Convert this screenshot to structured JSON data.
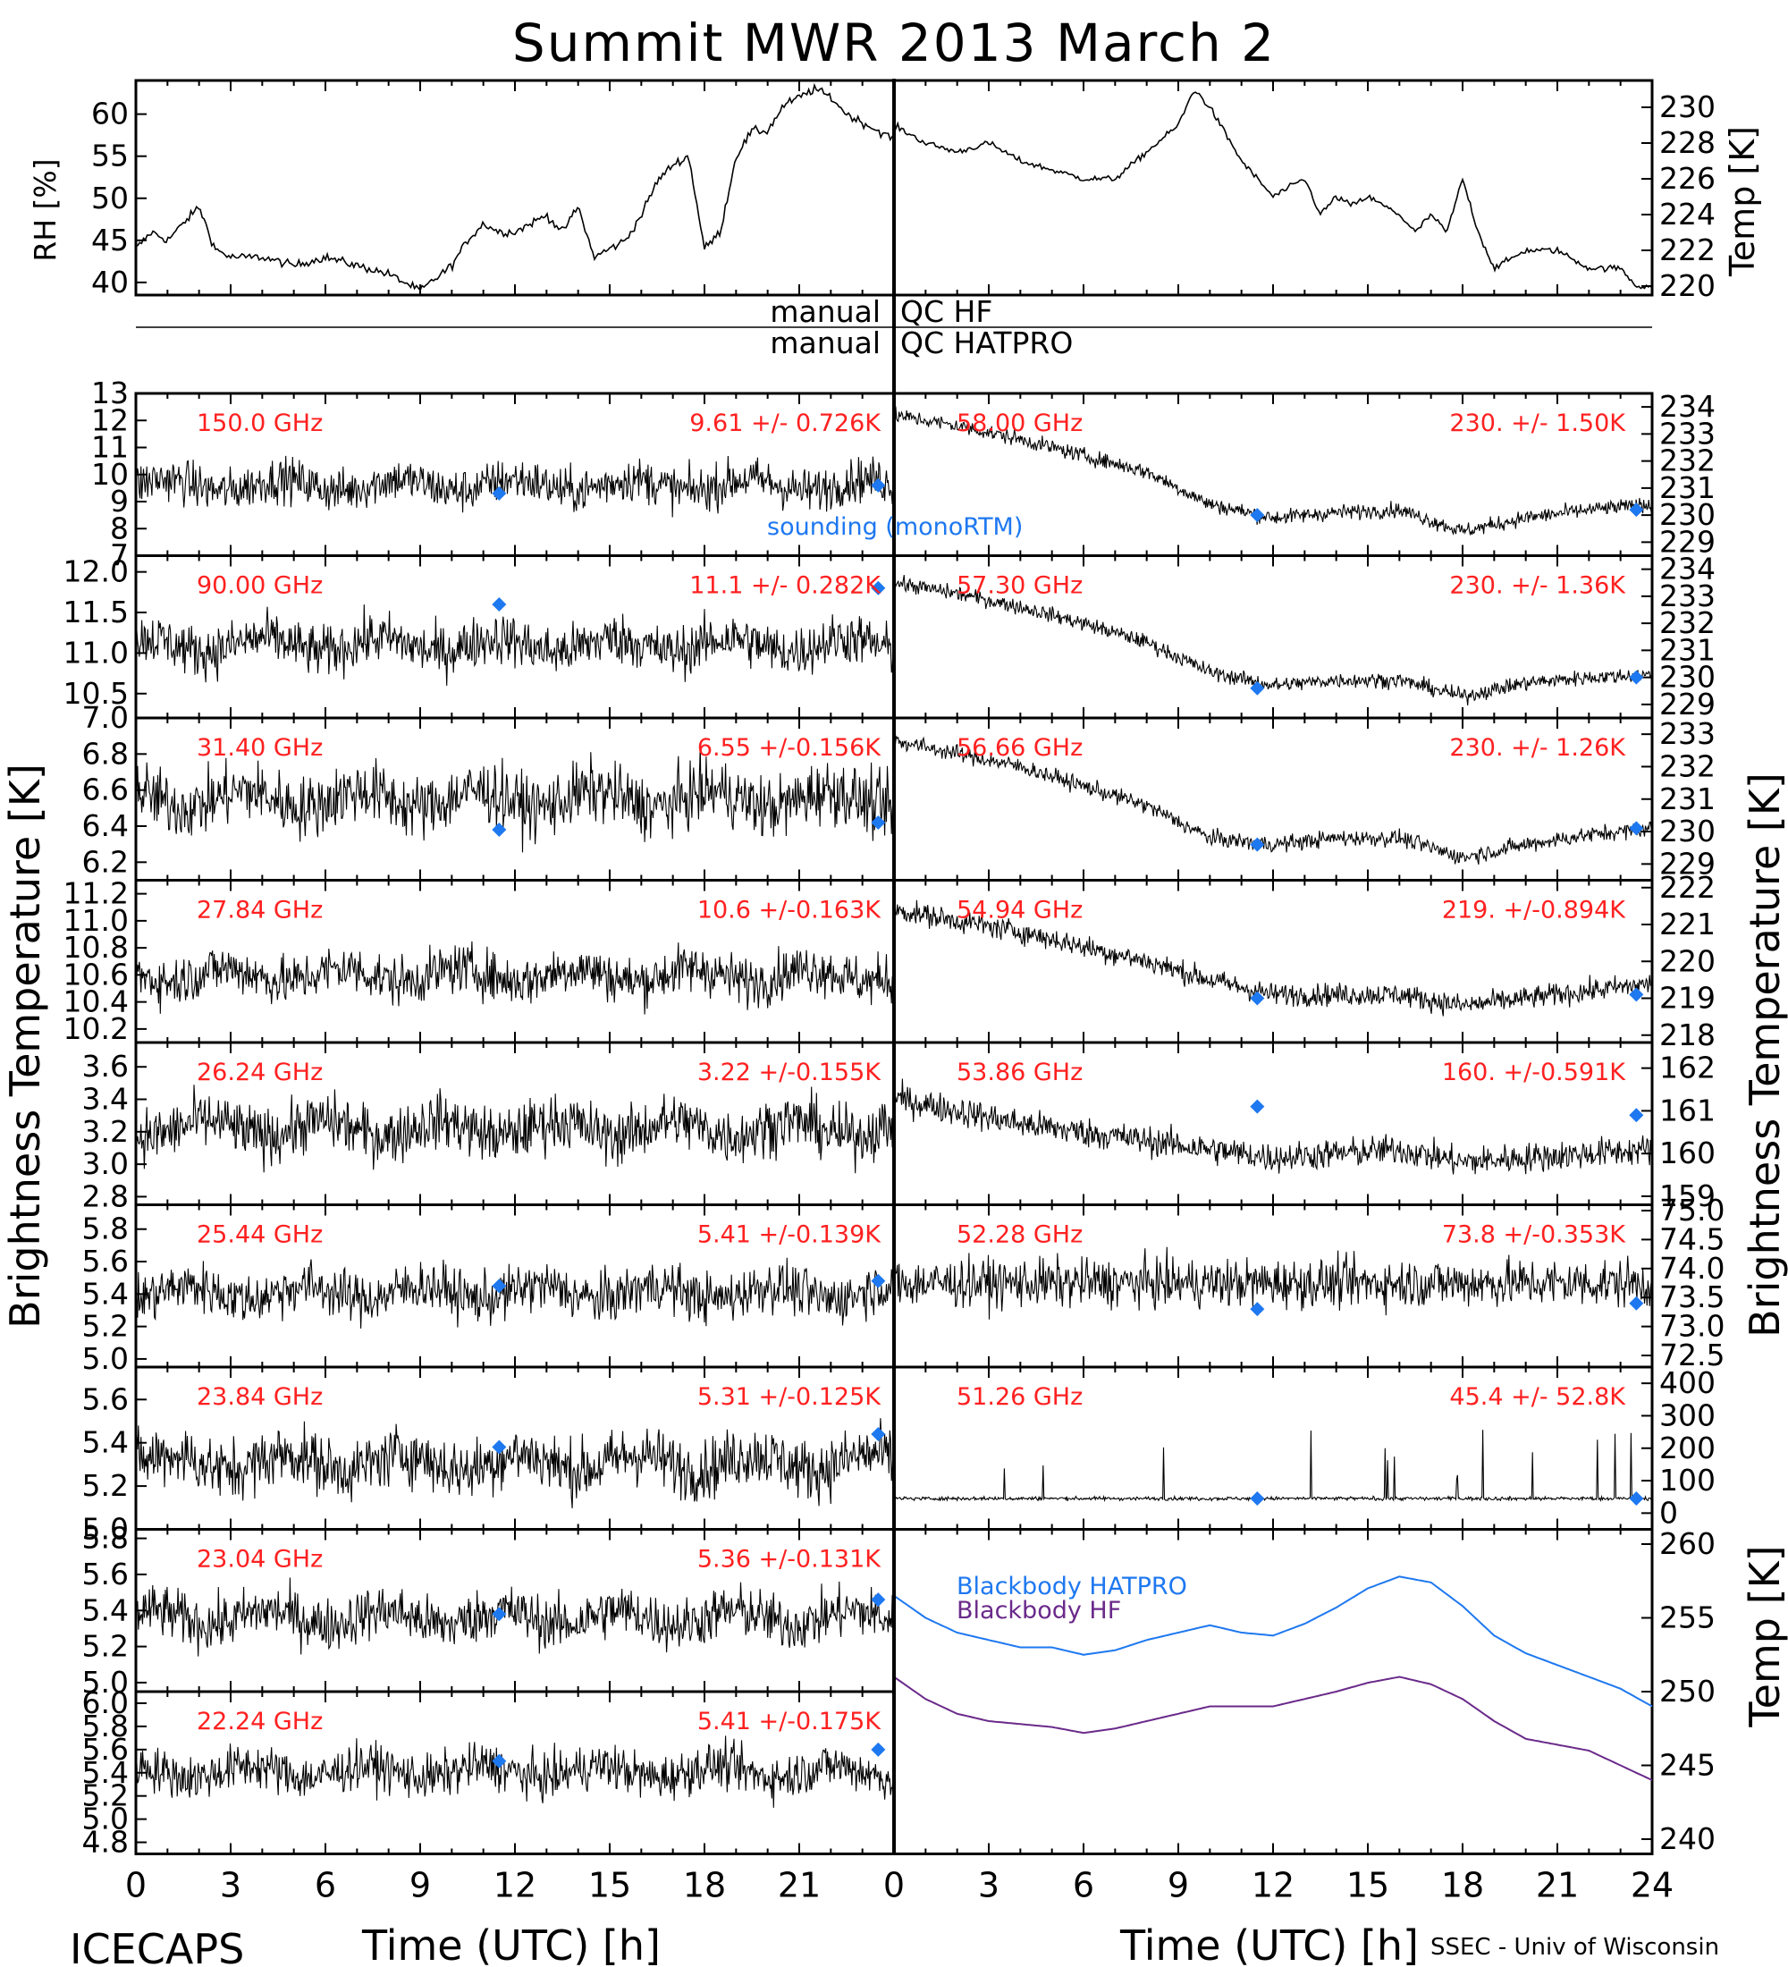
{
  "title": "Summit MWR 2013 March  2",
  "footer": {
    "left": "ICECAPS",
    "right": "SSEC - Univ of Wisconsin"
  },
  "qc_labels": {
    "hf_left": "manual",
    "hf_right": "QC HF",
    "hatpro_left": "manual",
    "hatpro_right": "QC HATPRO"
  },
  "axis_labels": {
    "left_bt": "Brightness Temperature [K]",
    "right_bt": "Brightness Temperature [K]",
    "right_temp": "Temp [K]",
    "rh": "RH [%]",
    "temp_top": "Temp [K]",
    "x_left": "Time (UTC) [h]",
    "x_right": "Time (UTC) [h]"
  },
  "legend": {
    "sounding": "sounding (monoRTM)",
    "bb_hatpro": "Blackbody HATPRO",
    "bb_hf": "Blackbody HF"
  },
  "colors": {
    "red": "#ff2020",
    "blue": "#1e78f0",
    "purple": "#6a2a8a",
    "black": "#000000"
  },
  "chart_data": {
    "type": "line",
    "x_ticks": [
      "0",
      "3",
      "6",
      "9",
      "12",
      "15",
      "18",
      "21"
    ],
    "x_ticks_right": [
      "0",
      "3",
      "6",
      "9",
      "12",
      "15",
      "18",
      "21",
      "24"
    ],
    "xlim": [
      0,
      24
    ],
    "top_panel": {
      "rh": {
        "ylim": [
          38.5,
          64
        ],
        "ticks": [
          "40",
          "45",
          "50",
          "55",
          "60"
        ],
        "x": [
          0,
          0.5,
          1,
          1.5,
          2,
          2.5,
          3,
          4,
          5,
          6,
          7,
          8,
          9,
          10,
          10.5,
          11,
          11.5,
          12,
          12.5,
          13,
          13.5,
          14,
          14.5,
          15,
          15.5,
          16,
          16.5,
          17,
          17.5,
          18,
          18.5,
          19,
          19.5,
          20,
          20.5,
          21,
          21.5,
          22,
          22.5,
          23,
          23.5,
          24
        ],
        "y": [
          44,
          46,
          45,
          47,
          49,
          44,
          43,
          43,
          42,
          43,
          42,
          41,
          39,
          42,
          45,
          47,
          46,
          46,
          47,
          48,
          46,
          49,
          43,
          44,
          45,
          48,
          52,
          54,
          55,
          44,
          46,
          55,
          58,
          58,
          61,
          62,
          63,
          62,
          60,
          59,
          58,
          57
        ]
      },
      "temp": {
        "ylim": [
          219.5,
          231.5
        ],
        "ticks": [
          "220",
          "222",
          "224",
          "226",
          "228",
          "230"
        ],
        "x": [
          0,
          1,
          2,
          3,
          4,
          5,
          6,
          7,
          8,
          9,
          9.5,
          10,
          11,
          12,
          13,
          13.5,
          14,
          14.5,
          15,
          15.5,
          16,
          16.5,
          17,
          17.5,
          18,
          18.5,
          19,
          20,
          21,
          22,
          23,
          23.5,
          24
        ],
        "y": [
          229,
          228,
          227.5,
          228,
          227,
          226.5,
          226,
          226,
          227.5,
          229,
          231,
          230,
          227,
          225,
          226,
          224,
          225,
          224.5,
          225,
          224.5,
          224,
          223,
          224,
          223,
          226,
          223,
          221,
          222,
          222,
          221,
          221,
          220,
          220
        ]
      }
    },
    "left_panels": [
      {
        "freq": "150.0 GHz",
        "stat": "9.61 +/- 0.726K",
        "ylim": [
          7,
          13
        ],
        "ticks": [
          "7",
          "8",
          "9",
          "10",
          "11",
          "12",
          "13"
        ],
        "mean": 9.61,
        "sd": 0.726,
        "sonde": [
          [
            11.5,
            9.3
          ],
          [
            23.5,
            9.6
          ]
        ]
      },
      {
        "freq": "90.00 GHz",
        "stat": "11.1 +/- 0.282K",
        "ylim": [
          10.2,
          12.2
        ],
        "ticks": [
          "10.5",
          "11.0",
          "11.5",
          "12.0"
        ],
        "mean": 11.1,
        "sd": 0.282,
        "sonde": [
          [
            11.5,
            11.6
          ],
          [
            23.5,
            11.8
          ]
        ]
      },
      {
        "freq": "31.40 GHz",
        "stat": "6.55 +/-0.156K",
        "ylim": [
          6.1,
          7.0
        ],
        "ticks": [
          "6.2",
          "6.4",
          "6.6",
          "6.8",
          "7.0"
        ],
        "mean": 6.55,
        "sd": 0.156,
        "sonde": [
          [
            11.5,
            6.38
          ],
          [
            23.5,
            6.42
          ]
        ]
      },
      {
        "freq": "27.84 GHz",
        "stat": "10.6 +/-0.163K",
        "ylim": [
          10.1,
          11.3
        ],
        "ticks": [
          "10.2",
          "10.4",
          "10.6",
          "10.8",
          "11.0",
          "11.2"
        ],
        "mean": 10.6,
        "sd": 0.163,
        "sonde": []
      },
      {
        "freq": "26.24 GHz",
        "stat": "3.22 +/-0.155K",
        "ylim": [
          2.75,
          3.75
        ],
        "ticks": [
          "2.8",
          "3.0",
          "3.2",
          "3.4",
          "3.6"
        ],
        "mean": 3.22,
        "sd": 0.155,
        "sonde": []
      },
      {
        "freq": "25.44 GHz",
        "stat": "5.41 +/-0.139K",
        "ylim": [
          4.95,
          5.95
        ],
        "ticks": [
          "5.0",
          "5.2",
          "5.4",
          "5.6",
          "5.8"
        ],
        "mean": 5.41,
        "sd": 0.139,
        "sonde": [
          [
            11.5,
            5.45
          ],
          [
            23.5,
            5.48
          ]
        ]
      },
      {
        "freq": "23.84 GHz",
        "stat": "5.31 +/-0.125K",
        "ylim": [
          5.0,
          5.75
        ],
        "ticks": [
          "5.0",
          "5.2",
          "5.4",
          "5.6"
        ],
        "mean": 5.31,
        "sd": 0.125,
        "sonde": [
          [
            11.5,
            5.38
          ],
          [
            23.5,
            5.44
          ]
        ]
      },
      {
        "freq": "23.04 GHz",
        "stat": "5.36 +/-0.131K",
        "ylim": [
          4.95,
          5.85
        ],
        "ticks": [
          "5.0",
          "5.2",
          "5.4",
          "5.6",
          "5.8"
        ],
        "mean": 5.36,
        "sd": 0.131,
        "sonde": [
          [
            11.5,
            5.38
          ],
          [
            23.5,
            5.46
          ]
        ]
      },
      {
        "freq": "22.24 GHz",
        "stat": "5.41 +/-0.175K",
        "ylim": [
          4.7,
          6.1
        ],
        "ticks": [
          "4.8",
          "5.0",
          "5.2",
          "5.4",
          "5.6",
          "5.8",
          "6.0"
        ],
        "mean": 5.41,
        "sd": 0.175,
        "sonde": [
          [
            11.5,
            5.5
          ],
          [
            23.5,
            5.6
          ]
        ]
      }
    ],
    "right_panels": [
      {
        "freq": "58.00 GHz",
        "stat": "230. +/- 1.50K",
        "ylim": [
          228.5,
          234.5
        ],
        "ticks": [
          "229",
          "230",
          "231",
          "232",
          "233",
          "234"
        ],
        "trend_x": [
          0,
          2,
          4,
          6,
          8,
          10,
          12,
          14,
          16,
          18,
          20,
          22,
          24
        ],
        "trend_y": [
          233.7,
          233.3,
          232.8,
          232.2,
          231.6,
          230.4,
          229.9,
          230.1,
          230.2,
          229.4,
          229.9,
          230.2,
          230.4
        ],
        "sd": 0.2,
        "sonde": [
          [
            11.5,
            230.0
          ],
          [
            23.5,
            230.2
          ]
        ]
      },
      {
        "freq": "57.30 GHz",
        "stat": "230. +/- 1.36K",
        "ylim": [
          228.5,
          234.5
        ],
        "ticks": [
          "229",
          "230",
          "231",
          "232",
          "233",
          "234"
        ],
        "trend_x": [
          0,
          2,
          4,
          6,
          8,
          10,
          12,
          14,
          16,
          18,
          20,
          22,
          24
        ],
        "trend_y": [
          233.5,
          233.1,
          232.6,
          232.0,
          231.3,
          230.2,
          229.7,
          229.9,
          229.9,
          229.3,
          229.8,
          230.0,
          230.1
        ],
        "sd": 0.2,
        "sonde": [
          [
            11.5,
            229.6
          ],
          [
            23.5,
            230.0
          ]
        ]
      },
      {
        "freq": "56.66 GHz",
        "stat": "230. +/- 1.26K",
        "ylim": [
          228.5,
          233.5
        ],
        "ticks": [
          "229",
          "230",
          "231",
          "232",
          "233"
        ],
        "trend_x": [
          0,
          2,
          4,
          6,
          8,
          10,
          12,
          14,
          16,
          18,
          20,
          22,
          24
        ],
        "trend_y": [
          232.8,
          232.4,
          232.0,
          231.4,
          230.8,
          229.8,
          229.6,
          229.8,
          229.8,
          229.2,
          229.6,
          229.9,
          230.1
        ],
        "sd": 0.18,
        "sonde": [
          [
            11.5,
            229.6
          ],
          [
            23.5,
            230.1
          ]
        ]
      },
      {
        "freq": "54.94 GHz",
        "stat": "219. +/-0.894K",
        "ylim": [
          217.8,
          222.2
        ],
        "ticks": [
          "218",
          "219",
          "220",
          "221",
          "222"
        ],
        "trend_x": [
          0,
          2,
          4,
          6,
          8,
          10,
          12,
          14,
          16,
          18,
          20,
          22,
          24
        ],
        "trend_y": [
          221.4,
          221.1,
          220.8,
          220.4,
          220.0,
          219.5,
          219.1,
          219.1,
          219.1,
          218.8,
          219.0,
          219.2,
          219.4
        ],
        "sd": 0.22,
        "sonde": [
          [
            11.5,
            219.0
          ],
          [
            23.5,
            219.1
          ]
        ]
      },
      {
        "freq": "53.86 GHz",
        "stat": "160. +/-0.591K",
        "ylim": [
          158.8,
          162.6
        ],
        "ticks": [
          "159",
          "160",
          "161",
          "162"
        ],
        "trend_x": [
          0,
          2,
          4,
          6,
          8,
          10,
          12,
          14,
          16,
          18,
          20,
          22,
          24
        ],
        "trend_y": [
          161.3,
          161.0,
          160.7,
          160.5,
          160.3,
          160.1,
          159.9,
          160.0,
          160.1,
          159.8,
          159.9,
          160.0,
          160.1
        ],
        "sd": 0.25,
        "sonde": [
          [
            11.5,
            161.1
          ],
          [
            23.5,
            160.9
          ]
        ]
      },
      {
        "freq": "52.28 GHz",
        "stat": "73.8 +/-0.353K",
        "ylim": [
          72.3,
          75.1
        ],
        "ticks": [
          "72.5",
          "73.0",
          "73.5",
          "74.0",
          "74.5",
          "75.0"
        ],
        "trend_x": [
          0,
          24
        ],
        "trend_y": [
          73.75,
          73.75
        ],
        "sd": 0.3,
        "sonde": [
          [
            11.5,
            73.3
          ],
          [
            23.5,
            73.4
          ]
        ]
      },
      {
        "freq": "51.26 GHz",
        "stat": "45.4 +/- 52.8K",
        "ylim": [
          -50,
          450
        ],
        "ticks": [
          "0",
          "100",
          "200",
          "300",
          "400"
        ],
        "trend_x": [
          0,
          24
        ],
        "trend_y": [
          45,
          45
        ],
        "sd": 4,
        "sonde": [
          [
            11.5,
            45
          ],
          [
            23.5,
            45
          ]
        ]
      }
    ],
    "blackbody": {
      "ylim": [
        239,
        261
      ],
      "ticks": [
        "240",
        "245",
        "250",
        "255",
        "260"
      ],
      "x": [
        0,
        1,
        2,
        3,
        4,
        5,
        6,
        7,
        8,
        9,
        10,
        11,
        12,
        13,
        14,
        15,
        16,
        17,
        18,
        19,
        20,
        21,
        22,
        23,
        24
      ],
      "hatpro": [
        256.5,
        255,
        254,
        253.5,
        253,
        253,
        252.5,
        252.8,
        253.5,
        254,
        254.5,
        254,
        253.8,
        254.6,
        255.7,
        257,
        257.8,
        257.4,
        255.8,
        253.8,
        252.6,
        251.8,
        251,
        250.2,
        249
      ],
      "hf": [
        251,
        249.5,
        248.5,
        248,
        247.8,
        247.6,
        247.2,
        247.5,
        248,
        248.5,
        249,
        249,
        249,
        249.5,
        250,
        250.6,
        251,
        250.5,
        249.5,
        248,
        246.8,
        246.4,
        246,
        245,
        244
      ]
    }
  }
}
